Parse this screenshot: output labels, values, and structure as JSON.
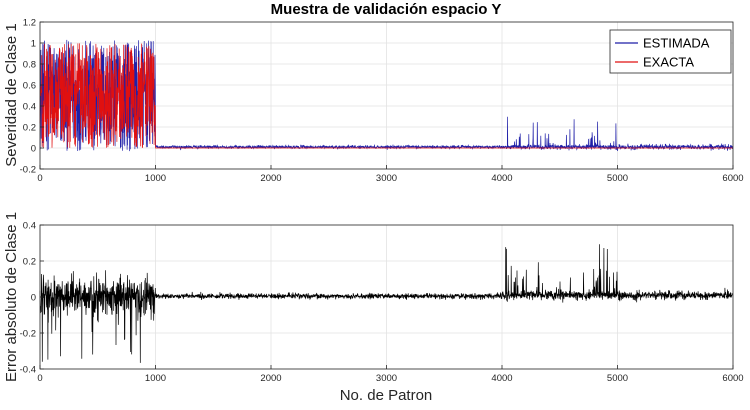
{
  "chart_data": [
    {
      "type": "line",
      "title": "Muestra de validación espacio Y",
      "xlabel": "",
      "ylabel": "Severidad de Clase 1",
      "xlim": [
        0,
        6000
      ],
      "ylim": [
        -0.2,
        1.2
      ],
      "xticks": [
        "0",
        "1000",
        "2000",
        "3000",
        "4000",
        "5000",
        "6000"
      ],
      "yticks": [
        "-0.2",
        "0",
        "0.2",
        "0.4",
        "0.6",
        "0.8",
        "1",
        "1.2"
      ],
      "grid": true,
      "legend": "top-right",
      "series": [
        {
          "name": "ESTIMADA",
          "color": "#1f1fa8",
          "segments": [
            {
              "x_range": [
                0,
                1000
              ],
              "pattern": "noisy",
              "min": -0.03,
              "max": 1.03,
              "mean": 0.5
            },
            {
              "x_range": [
                1000,
                4000
              ],
              "pattern": "baseline",
              "level": 0.01,
              "noise": 0.012
            },
            {
              "x_range": [
                4000,
                5000
              ],
              "pattern": "sparse_spikes",
              "level": 0.01,
              "max": 0.31
            },
            {
              "x_range": [
                5000,
                6000
              ],
              "pattern": "baseline",
              "level": 0.01,
              "noise": 0.02
            }
          ]
        },
        {
          "name": "EXACTA",
          "color": "#e01010",
          "segments": [
            {
              "x_range": [
                0,
                1000
              ],
              "pattern": "noisy",
              "min": 0.0,
              "max": 1.0,
              "mean": 0.5
            },
            {
              "x_range": [
                1000,
                6000
              ],
              "pattern": "constant",
              "level": 0.0
            }
          ]
        }
      ]
    },
    {
      "type": "line",
      "title": "",
      "xlabel": "No. de Patron",
      "ylabel": "Error absoluto de Clase 1",
      "xlim": [
        0,
        6000
      ],
      "ylim": [
        -0.4,
        0.4
      ],
      "xticks": [
        "0",
        "1000",
        "2000",
        "3000",
        "4000",
        "5000",
        "6000"
      ],
      "yticks": [
        "-0.4",
        "-0.2",
        "0",
        "0.2",
        "0.4"
      ],
      "grid": true,
      "series": [
        {
          "color": "#000000",
          "segments": [
            {
              "x_range": [
                0,
                1000
              ],
              "pattern": "noisy",
              "min": -0.37,
              "max": 0.15,
              "mean": 0.0
            },
            {
              "x_range": [
                1000,
                4000
              ],
              "pattern": "baseline",
              "level": 0.005,
              "noise": 0.012
            },
            {
              "x_range": [
                4000,
                5000
              ],
              "pattern": "sparse_spikes",
              "level": 0.01,
              "max": 0.31
            },
            {
              "x_range": [
                5000,
                6000
              ],
              "pattern": "baseline",
              "level": 0.01,
              "noise": 0.02
            }
          ]
        }
      ]
    }
  ]
}
